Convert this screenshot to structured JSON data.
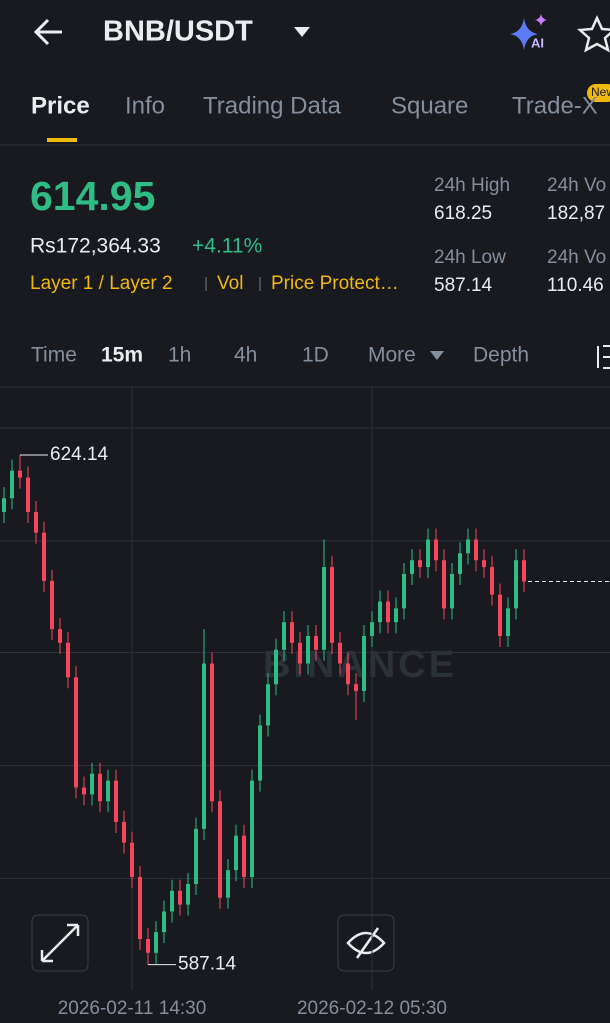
{
  "header": {
    "pair": "BNB/USDT",
    "ai_badge": "AI"
  },
  "tabs": [
    "Price",
    "Info",
    "Trading Data",
    "Square",
    "Trade-X"
  ],
  "new_badge": "New",
  "ticker": {
    "price": "614.95",
    "fiat": "Rs172,364.33",
    "change": "+4.11%",
    "tags": [
      "Layer 1 / Layer 2",
      "Vol",
      "Price Protect…"
    ]
  },
  "stats": [
    {
      "label": "24h High",
      "value": "618.25"
    },
    {
      "label": "24h Vo",
      "value": "182,87"
    },
    {
      "label": "24h Low",
      "value": "587.14"
    },
    {
      "label": "24h Vo",
      "value": "110.46"
    }
  ],
  "intervals": [
    "Time",
    "15m",
    "1h",
    "4h",
    "1D",
    "More",
    "Depth"
  ],
  "chart_data": {
    "type": "candlestick",
    "watermark": "BINANCE",
    "up_color": "#2ebd85",
    "down_color": "#f6465d",
    "ylim": [
      585.3,
      629.0
    ],
    "grid_lines": [
      626.1,
      617.9,
      609.8,
      601.6,
      593.4
    ],
    "xticks": [
      {
        "value": 16,
        "label": "2026-02-11 14:30"
      },
      {
        "value": 46,
        "label": "2026-02-12 05:30"
      }
    ],
    "max_label": 624.14,
    "min_label": 587.14,
    "last_price": 614.95,
    "open": [
      620.0,
      621.0,
      623.0,
      622.5,
      620.0,
      618.5,
      615.0,
      611.5,
      610.5,
      608.0,
      600.0,
      599.5,
      601.0,
      599.0,
      600.5,
      597.5,
      596.0,
      593.5,
      589.0,
      588.0,
      589.5,
      591.0,
      592.5,
      591.5,
      593.0,
      597.0,
      609.0,
      599.0,
      592.0,
      594.0,
      596.5,
      593.5,
      600.5,
      604.5,
      607.5,
      610.0,
      612.0,
      610.5,
      609.0,
      611.0,
      610.0,
      616.0,
      610.5,
      609.0,
      607.5,
      607.0,
      611.0,
      612.0,
      613.5,
      612.0,
      613.0,
      615.5,
      616.5,
      616.0,
      618.0,
      616.5,
      613.0,
      615.5,
      617.0,
      618.0,
      616.5,
      616.0,
      614.0,
      611.0,
      613.0,
      616.5
    ],
    "high": [
      621.8,
      623.8,
      624.14,
      623.3,
      620.8,
      619.3,
      615.8,
      612.3,
      611.3,
      608.8,
      600.8,
      601.8,
      601.8,
      601.3,
      601.3,
      598.3,
      596.8,
      594.3,
      589.8,
      590.3,
      591.8,
      593.3,
      593.3,
      593.8,
      597.8,
      611.5,
      609.8,
      599.8,
      594.8,
      597.3,
      597.3,
      601.3,
      605.3,
      608.3,
      610.8,
      612.8,
      612.8,
      611.3,
      611.8,
      611.8,
      618.0,
      616.8,
      611.3,
      609.8,
      608.3,
      611.8,
      612.8,
      614.3,
      614.3,
      613.8,
      616.3,
      617.3,
      617.3,
      618.8,
      618.8,
      617.3,
      616.3,
      617.8,
      618.8,
      618.8,
      617.3,
      616.8,
      614.8,
      613.8,
      617.3,
      617.3
    ],
    "low": [
      619.2,
      620.2,
      621.7,
      619.2,
      617.7,
      614.2,
      610.7,
      609.7,
      607.2,
      599.2,
      598.7,
      598.7,
      598.2,
      598.2,
      596.7,
      595.2,
      592.7,
      588.2,
      587.14,
      587.2,
      588.7,
      590.2,
      590.7,
      590.7,
      592.2,
      596.2,
      598.2,
      591.2,
      591.2,
      593.2,
      592.7,
      592.7,
      599.7,
      603.7,
      606.7,
      609.2,
      609.7,
      608.2,
      608.2,
      609.2,
      609.2,
      609.7,
      608.2,
      606.7,
      604.9,
      606.2,
      610.2,
      611.2,
      611.2,
      611.2,
      612.2,
      614.7,
      615.2,
      615.2,
      615.7,
      612.2,
      612.2,
      614.7,
      616.2,
      615.7,
      615.2,
      613.2,
      610.2,
      610.2,
      612.2,
      614.2
    ],
    "close": [
      621.0,
      623.0,
      622.5,
      620.0,
      618.5,
      615.0,
      611.5,
      610.5,
      608.0,
      600.0,
      599.5,
      601.0,
      599.0,
      600.5,
      597.5,
      596.0,
      593.5,
      589.0,
      588.0,
      589.5,
      591.0,
      592.5,
      591.5,
      593.0,
      597.0,
      609.0,
      599.0,
      592.0,
      594.0,
      596.5,
      593.5,
      600.5,
      604.5,
      607.5,
      610.0,
      612.0,
      610.5,
      609.0,
      611.0,
      610.0,
      616.0,
      610.5,
      609.0,
      607.5,
      607.0,
      611.0,
      612.0,
      613.5,
      612.0,
      613.0,
      615.5,
      616.5,
      616.0,
      618.0,
      616.5,
      613.0,
      615.5,
      617.0,
      618.0,
      616.5,
      616.0,
      614.0,
      611.0,
      613.0,
      616.5,
      614.95
    ]
  }
}
